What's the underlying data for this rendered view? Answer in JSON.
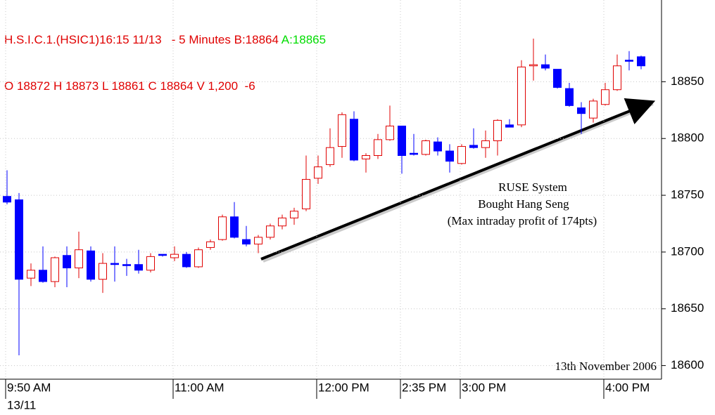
{
  "header": {
    "line1": "H.S.I.C.1.(HSIC1)16:15 11/13   - 5 Minutes B:18864",
    "ask": "A:18865",
    "line2": "O 18872 H 18873 L 18861 C 18864 V 1,200  -6"
  },
  "chart_data": {
    "type": "candlestick",
    "categories": [
      "9:50 AM",
      null,
      null,
      null,
      null,
      null,
      null,
      null,
      null,
      null,
      null,
      null,
      null,
      null,
      "11:00 AM",
      null,
      null,
      null,
      null,
      null,
      null,
      null,
      null,
      null,
      null,
      null,
      "12:00 PM",
      null,
      null,
      null,
      null,
      null,
      null,
      "2:35 PM",
      null,
      null,
      null,
      null,
      "3:00 PM",
      null,
      null,
      null,
      null,
      null,
      null,
      null,
      null,
      null,
      null,
      null,
      "4:00 PM",
      null,
      null,
      null
    ],
    "date_label": "13/11",
    "open": [
      18749,
      18746,
      18677,
      18684,
      18674,
      18697,
      18686,
      18701,
      18676,
      18690,
      18689,
      18689,
      18684,
      18698,
      18695,
      18698,
      18687,
      18704,
      18711,
      18731,
      18711,
      18707,
      18713,
      18723,
      18730,
      18738,
      18765,
      18777,
      18793,
      18817,
      18782,
      18785,
      18799,
      18811,
      18787,
      18786,
      18797,
      18789,
      18778,
      18794,
      18792,
      18798,
      18812,
      18812,
      18864,
      18865,
      18861,
      18844,
      18827,
      18818,
      18830,
      18843,
      18869,
      18872
    ],
    "high": [
      18772,
      18752,
      18690,
      18705,
      18696,
      18705,
      18718,
      18705,
      18699,
      18705,
      18694,
      18702,
      18699,
      18698,
      18705,
      18700,
      18704,
      18711,
      18733,
      18744,
      18723,
      18715,
      18725,
      18733,
      18739,
      18785,
      18785,
      18809,
      18823,
      18824,
      18787,
      18804,
      18829,
      18811,
      18804,
      18799,
      18801,
      18795,
      18795,
      18809,
      18807,
      18817,
      18817,
      18869,
      18888,
      18874,
      18861,
      18849,
      18832,
      18835,
      18849,
      18874,
      18877,
      18873
    ],
    "low": [
      18742,
      18609,
      18670,
      18673,
      18669,
      18669,
      18677,
      18674,
      18664,
      18674,
      18679,
      18681,
      18682,
      18696,
      18692,
      18686,
      18686,
      18702,
      18710,
      18712,
      18705,
      18699,
      18711,
      18720,
      18724,
      18736,
      18760,
      18775,
      18783,
      18780,
      18770,
      18782,
      18798,
      18769,
      18785,
      18785,
      18785,
      18770,
      18777,
      18791,
      18783,
      18785,
      18810,
      18810,
      18851,
      18860,
      18844,
      18828,
      18804,
      18814,
      18829,
      18842,
      18860,
      18861
    ],
    "close": [
      18744,
      18676,
      18684,
      18674,
      18695,
      18686,
      18702,
      18676,
      18690,
      18689,
      18688,
      18684,
      18696,
      18697,
      18698,
      18687,
      18702,
      18709,
      18731,
      18713,
      18707,
      18713,
      18723,
      18730,
      18736,
      18764,
      18775,
      18792,
      18821,
      18781,
      18785,
      18799,
      18811,
      18785,
      18786,
      18798,
      18789,
      18780,
      18793,
      18792,
      18798,
      18816,
      18810,
      18863,
      18865,
      18862,
      18845,
      18829,
      18822,
      18833,
      18843,
      18864,
      18868,
      18864
    ],
    "up_color": "#e00000",
    "down_color": "#0000ff",
    "ylim": [
      18588,
      18922
    ],
    "yticks": [
      18600,
      18650,
      18700,
      18750,
      18800,
      18850
    ],
    "grid": true,
    "annotation": [
      "RUSE System",
      "Bought Hang Seng",
      "(Max intraday profit of 174pts)"
    ],
    "footnote": "13th November 2006"
  }
}
